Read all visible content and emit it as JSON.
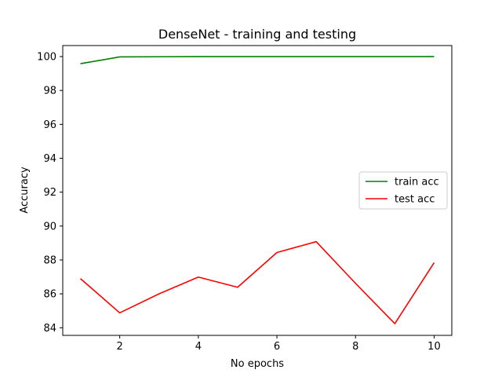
{
  "chart_data": {
    "type": "line",
    "title": "DenseNet - training and testing",
    "xlabel": "No epochs",
    "ylabel": "Accuracy",
    "x": [
      1,
      2,
      3,
      4,
      5,
      6,
      7,
      8,
      9,
      10
    ],
    "xlim": [
      0.55,
      10.45
    ],
    "ylim": [
      83.55,
      100.65
    ],
    "xticks": [
      2,
      4,
      6,
      8,
      10
    ],
    "yticks": [
      84,
      86,
      88,
      90,
      92,
      94,
      96,
      98,
      100
    ],
    "grid": false,
    "legend_position": "center-right",
    "series": [
      {
        "name": "train acc",
        "color": "#008000",
        "values": [
          99.58,
          99.98,
          99.99,
          100.0,
          100.0,
          100.0,
          100.0,
          100.0,
          100.0,
          100.0
        ]
      },
      {
        "name": "test acc",
        "color": "#ff0000",
        "values": [
          86.9,
          84.88,
          86.0,
          86.99,
          86.39,
          88.44,
          89.08,
          86.62,
          84.24,
          87.84
        ]
      }
    ]
  }
}
